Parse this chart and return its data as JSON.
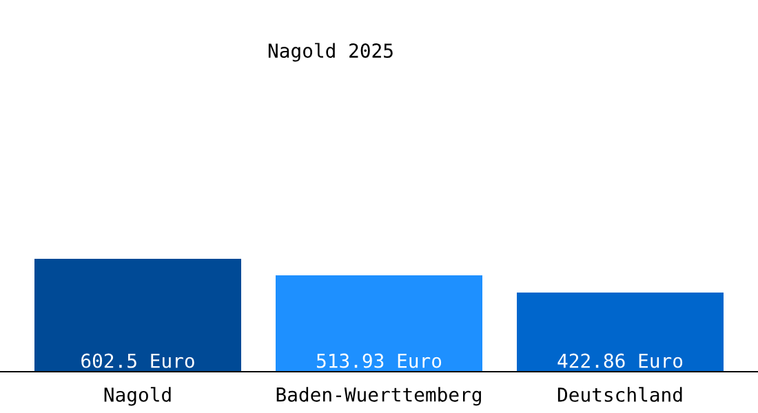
{
  "chart_data": {
    "type": "bar",
    "title": "Nagold 2025",
    "categories": [
      "Nagold",
      "Baden-Wuerttemberg",
      "Deutschland"
    ],
    "values": [
      602.5,
      513.93,
      422.86
    ],
    "colors": [
      "#004a96",
      "#1e90ff",
      "#0066cc"
    ],
    "value_labels": [
      "602.5 Euro",
      "513.93 Euro",
      "422.86 Euro"
    ],
    "grid": false,
    "legend": false
  }
}
